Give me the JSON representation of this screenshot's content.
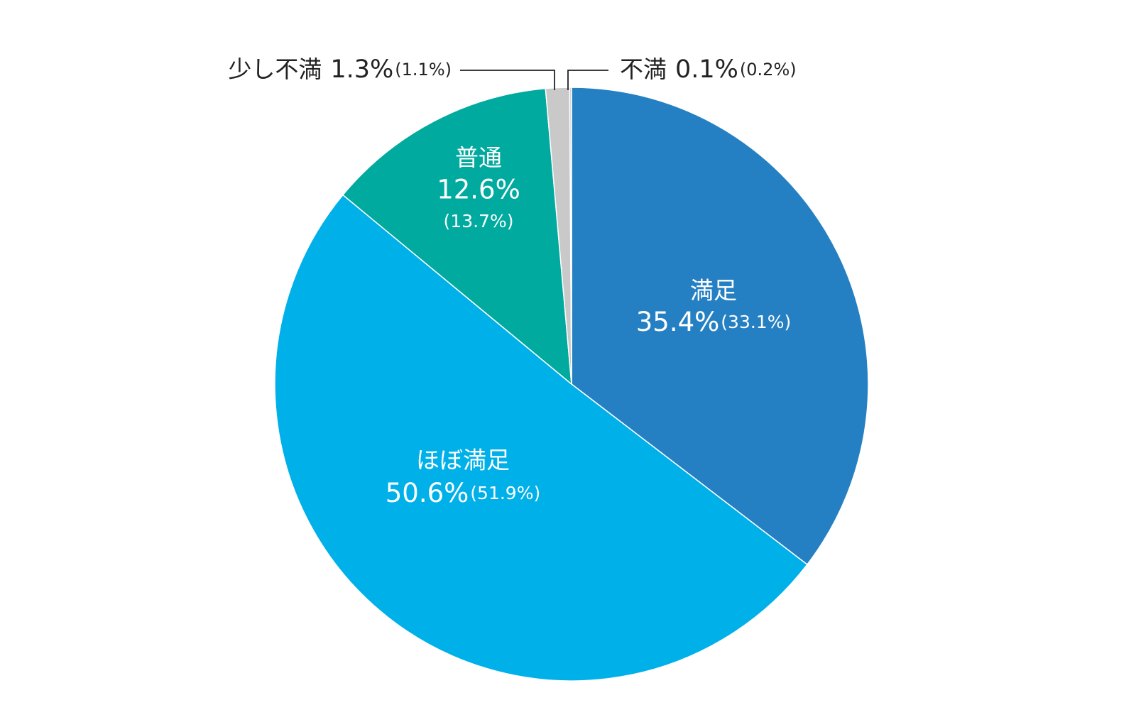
{
  "chart_data": {
    "type": "pie",
    "categories": [
      "満足",
      "ほぼ満足",
      "普通",
      "少し不満",
      "不満"
    ],
    "values": [
      35.4,
      50.6,
      12.6,
      1.3,
      0.1
    ],
    "value_labels": [
      "35.4%",
      "50.6%",
      "12.6%",
      "1.3%",
      "0.1%"
    ],
    "previous_labels": [
      "(33.1%)",
      "(51.9%)",
      "(13.7%)",
      "(1.1%)",
      "(0.2%)"
    ],
    "colors": [
      "#2580c3",
      "#00b0e9",
      "#00aa9e",
      "#c9c9c9",
      "#c9c9c9"
    ]
  }
}
